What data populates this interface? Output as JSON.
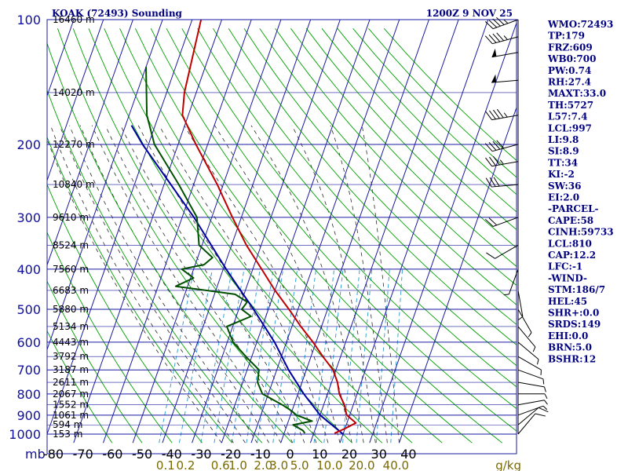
{
  "title_left": "KOAK (72493) Sounding",
  "title_right": "1200Z  9 NOV 25",
  "colors": {
    "isobar": "#1a1aa0",
    "isotherm": "#1a1aa0",
    "dry_adiabat": "#00a000",
    "moist_adiabat": "#2a2a2a",
    "mixing_ratio": "#3aa0d0",
    "temperature": "#c00000",
    "dewpoint": "#005000",
    "parcel": "#0000a0",
    "wind": "#000000"
  },
  "chart_data": {
    "type": "skew-t",
    "pressure_axis": {
      "unit_label": "mb",
      "ticks": [
        100,
        200,
        300,
        400,
        500,
        600,
        700,
        800,
        900,
        1000
      ]
    },
    "temperature_axis": {
      "ticks": [
        -80,
        -70,
        -60,
        -50,
        -40,
        -30,
        -20,
        -10,
        0,
        10,
        20,
        30,
        40
      ],
      "labels": [
        "-80",
        "-70",
        "-60",
        "-50",
        "-40",
        "-30",
        "-20",
        "-10",
        "0",
        "10",
        "20",
        "30",
        "40"
      ]
    },
    "mixing_ratio_labels": [
      "0.1",
      "0.2",
      "0.6",
      "1.0",
      "2.0",
      "3.0",
      "5.0",
      "10.0",
      "20.0",
      "40.0"
    ],
    "mixing_ratio_values": [
      0.1,
      0.2,
      0.6,
      1.0,
      2.0,
      3.0,
      5.0,
      10.0,
      20.0,
      40.0
    ],
    "mixing_ratio_unit": "g/kg",
    "height_labels": [
      {
        "p": 100,
        "label": "16460 m"
      },
      {
        "p": 150,
        "label": "14020 m"
      },
      {
        "p": 200,
        "label": "12270 m"
      },
      {
        "p": 250,
        "label": "10840 m"
      },
      {
        "p": 300,
        "label": "9610 m"
      },
      {
        "p": 350,
        "label": "8524 m"
      },
      {
        "p": 400,
        "label": "7560 m"
      },
      {
        "p": 450,
        "label": "6683 m"
      },
      {
        "p": 500,
        "label": "5880 m"
      },
      {
        "p": 550,
        "label": "5134 m"
      },
      {
        "p": 600,
        "label": "4443 m"
      },
      {
        "p": 650,
        "label": "3792 m"
      },
      {
        "p": 700,
        "label": "3187 m"
      },
      {
        "p": 750,
        "label": "2611 m"
      },
      {
        "p": 800,
        "label": "2067 m"
      },
      {
        "p": 850,
        "label": "1552 m"
      },
      {
        "p": 900,
        "label": "1061 m"
      },
      {
        "p": 950,
        "label": "594 m"
      },
      {
        "p": 1000,
        "label": "153 m"
      }
    ],
    "temperature_profile": [
      [
        100,
        -77
      ],
      [
        150,
        -74
      ],
      [
        170,
        -72
      ],
      [
        200,
        -64
      ],
      [
        250,
        -52
      ],
      [
        300,
        -43
      ],
      [
        350,
        -35
      ],
      [
        400,
        -27
      ],
      [
        450,
        -20
      ],
      [
        500,
        -13
      ],
      [
        550,
        -7
      ],
      [
        600,
        -1
      ],
      [
        650,
        4
      ],
      [
        700,
        9
      ],
      [
        750,
        12
      ],
      [
        800,
        14
      ],
      [
        850,
        17
      ],
      [
        900,
        19
      ],
      [
        940,
        23
      ],
      [
        970,
        20
      ],
      [
        995,
        17
      ]
    ],
    "dewpoint_profile": [
      [
        130,
        -90
      ],
      [
        170,
        -84
      ],
      [
        200,
        -78
      ],
      [
        250,
        -65
      ],
      [
        300,
        -55
      ],
      [
        350,
        -51
      ],
      [
        375,
        -45
      ],
      [
        390,
        -47
      ],
      [
        400,
        -54
      ],
      [
        420,
        -49
      ],
      [
        440,
        -54
      ],
      [
        460,
        -33
      ],
      [
        480,
        -28
      ],
      [
        500,
        -29
      ],
      [
        520,
        -25
      ],
      [
        550,
        -32
      ],
      [
        600,
        -28
      ],
      [
        650,
        -22
      ],
      [
        700,
        -16
      ],
      [
        750,
        -15
      ],
      [
        800,
        -12
      ],
      [
        850,
        -4
      ],
      [
        880,
        0
      ],
      [
        900,
        2
      ],
      [
        930,
        8
      ],
      [
        950,
        2
      ],
      [
        980,
        6
      ],
      [
        995,
        7
      ]
    ],
    "parcel_profile": [
      [
        1000,
        20
      ],
      [
        900,
        10
      ],
      [
        800,
        2
      ],
      [
        700,
        -6
      ],
      [
        600,
        -14
      ],
      [
        500,
        -25
      ],
      [
        400,
        -39
      ],
      [
        300,
        -56
      ],
      [
        200,
        -82
      ],
      [
        180,
        -88
      ]
    ],
    "wind_profile": [
      [
        100,
        250,
        45
      ],
      [
        110,
        255,
        45
      ],
      [
        120,
        260,
        50
      ],
      [
        140,
        265,
        50
      ],
      [
        170,
        260,
        45
      ],
      [
        200,
        255,
        40
      ],
      [
        220,
        260,
        35
      ],
      [
        250,
        265,
        30
      ],
      [
        300,
        250,
        20
      ],
      [
        350,
        240,
        10
      ],
      [
        400,
        200,
        5
      ],
      [
        450,
        170,
        5
      ],
      [
        500,
        150,
        5
      ],
      [
        550,
        140,
        5
      ],
      [
        600,
        130,
        5
      ],
      [
        650,
        120,
        5
      ],
      [
        700,
        110,
        5
      ],
      [
        750,
        100,
        5
      ],
      [
        800,
        90,
        5
      ],
      [
        850,
        80,
        5
      ],
      [
        900,
        70,
        5
      ],
      [
        950,
        50,
        10
      ],
      [
        1000,
        40,
        10
      ]
    ]
  },
  "stats": [
    "WMO:72493",
    "TP:179",
    "FRZ:609",
    "WB0:700",
    "PW:0.74",
    "RH:27.4",
    "MAXT:33.0",
    "TH:5727",
    "L57:7.4",
    "LCL:997",
    "LI:9.8",
    "SI:8.9",
    "TT:34",
    "KI:-2",
    "SW:36",
    "EI:2.0",
    "-PARCEL-",
    "CAPE:58",
    "CINH:59733",
    "LCL:810",
    "CAP:12.2",
    "LFC:-1",
    "-WIND-",
    "STM:186/7",
    "HEL:45",
    "SHR+:0.0",
    "SRDS:149",
    "EHI:0.0",
    "BRN:5.0",
    "BSHR:12"
  ]
}
